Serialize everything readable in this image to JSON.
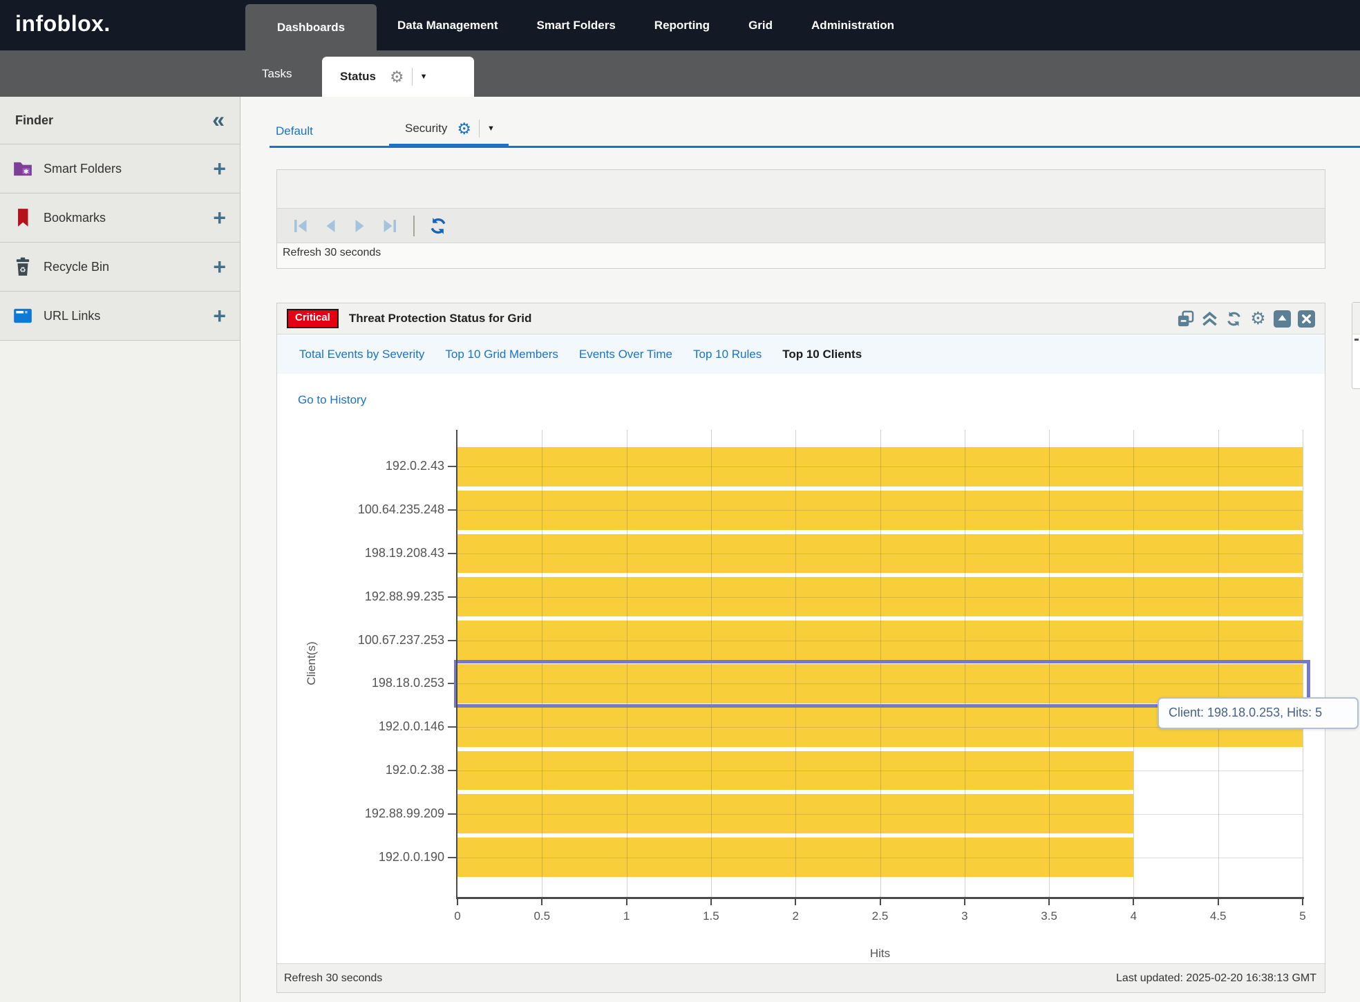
{
  "nav": {
    "logo": "infoblox.",
    "items": [
      {
        "label": "Dashboards",
        "active": true
      },
      {
        "label": "Data Management",
        "active": false
      },
      {
        "label": "Smart Folders",
        "active": false
      },
      {
        "label": "Reporting",
        "active": false
      },
      {
        "label": "Grid",
        "active": false
      },
      {
        "label": "Administration",
        "active": false
      }
    ]
  },
  "subnav": {
    "tasks_label": "Tasks",
    "status_label": "Status"
  },
  "finder": {
    "title": "Finder",
    "collapse_icon": "chevron-double-left",
    "items": [
      {
        "label": "Smart Folders",
        "icon": "smart-folders-icon"
      },
      {
        "label": "Bookmarks",
        "icon": "bookmarks-icon"
      },
      {
        "label": "Recycle Bin",
        "icon": "recycle-bin-icon"
      },
      {
        "label": "URL Links",
        "icon": "url-links-icon"
      }
    ],
    "add_label": "+"
  },
  "dashboard_tabs": {
    "default_label": "Default",
    "security_label": "Security"
  },
  "top_widget": {
    "toolbar_icons": [
      "first-page-icon",
      "previous-page-icon",
      "next-page-icon",
      "last-page-icon",
      "refresh-icon"
    ],
    "refresh_text": "Refresh 30 seconds"
  },
  "widget": {
    "severity_badge": "Critical",
    "title": "Threat Protection Status for Grid",
    "header_icons": [
      "duplicate-icon",
      "collapse-widget-icon",
      "refresh-widget-icon",
      "settings-gear-icon",
      "maximize-icon",
      "close-icon"
    ],
    "tabs": [
      {
        "label": "Total Events by Severity",
        "active": false
      },
      {
        "label": "Top 10 Grid Members",
        "active": false
      },
      {
        "label": "Events Over Time",
        "active": false
      },
      {
        "label": "Top 10 Rules",
        "active": false
      },
      {
        "label": "Top 10 Clients",
        "active": true
      }
    ],
    "history_link": "Go to History",
    "footer_left": "Refresh 30 seconds",
    "footer_right": "Last updated: 2025-02-20 16:38:13 GMT"
  },
  "chart_data": {
    "type": "bar",
    "orientation": "horizontal",
    "title": "Top 10 Clients",
    "categories": [
      "192.0.2.43",
      "100.64.235.248",
      "198.19.208.43",
      "192.88.99.235",
      "100.67.237.253",
      "198.18.0.253",
      "192.0.0.146",
      "192.0.2.38",
      "192.88.99.209",
      "192.0.0.190"
    ],
    "values": [
      5,
      5,
      5,
      5,
      5,
      5,
      5,
      4,
      4,
      4
    ],
    "xlabel": "Hits",
    "ylabel": "Client(s)",
    "xlim": [
      0,
      5
    ],
    "xticks": [
      0,
      0.5,
      1,
      1.5,
      2,
      2.5,
      3,
      3.5,
      4,
      4.5,
      5
    ],
    "grid": true,
    "bar_color": "#F8CE3B",
    "highlighted_category": "198.18.0.253",
    "highlight_border_color": "#7478CF",
    "tooltip": "Client: 198.18.0.253, Hits: 5"
  },
  "colors": {
    "accent_blue": "#1a73c8",
    "nav_dark": "#141a25",
    "nav_gray": "#58595b",
    "bar_yellow": "#F8CE3B",
    "highlight_purple": "#7478CF",
    "critical_red": "#E60012",
    "widget_icon_slate": "#5B7F93",
    "pagination_disabled": "#A3C4DC",
    "toolbar_refresh_blue": "#1565B8"
  }
}
